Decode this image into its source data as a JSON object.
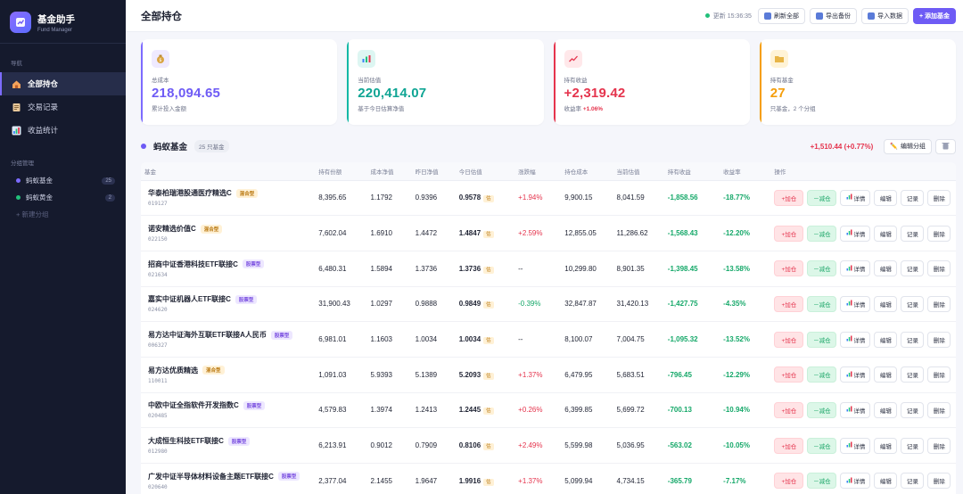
{
  "app": {
    "name": "基金助手",
    "subtitle": "Fund Manager"
  },
  "sidebar": {
    "nav_header": "导航",
    "nav": [
      {
        "label": "全部持仓",
        "icon": "house-icon",
        "active": true
      },
      {
        "label": "交易记录",
        "icon": "ledger-icon",
        "active": false
      },
      {
        "label": "收益统计",
        "icon": "bar-chart-icon",
        "active": false
      }
    ],
    "group_header": "分组管理",
    "groups": [
      {
        "label": "蚂蚁基金",
        "count": "25",
        "color": "#7c6bff"
      },
      {
        "label": "蚂蚁黄金",
        "count": "2",
        "color": "#22c07a"
      }
    ],
    "new_group": "+ 新建分组"
  },
  "topbar": {
    "title": "全部持仓",
    "update": "更新 15:36:35",
    "refresh": "刷新全部",
    "export": "导出备份",
    "import": "导入数据",
    "add": "+ 添加基金"
  },
  "cards": [
    {
      "label": "总成本",
      "value": "218,094.65",
      "sub": "累计投入金额",
      "color": "#7c6bff",
      "icon": "money-bag-icon"
    },
    {
      "label": "当前估值",
      "value": "220,414.07",
      "sub": "基于今日估算净值",
      "color": "#14b8a6",
      "icon": "chart-icon"
    },
    {
      "label": "持有收益",
      "value": "+2,319.42",
      "sub_prefix": "收益率 ",
      "sub_value": "+1.06%",
      "color": "#e5344d",
      "icon": "trend-icon"
    },
    {
      "label": "持有基金",
      "value": "27",
      "sub": "只基金，2 个分组",
      "color": "#f59e0b",
      "icon": "folder-icon"
    }
  ],
  "group": {
    "name": "蚂蚁基金",
    "count": "25 只基金",
    "pl": "+1,510.44 (+0.77%)",
    "edit": "编辑分组"
  },
  "table": {
    "headers": [
      "基金",
      "持有份额",
      "成本净值",
      "昨日净值",
      "今日估值",
      "涨跌幅",
      "持仓成本",
      "当前估值",
      "持有收益",
      "收益率",
      "操作"
    ],
    "est_tag": "估",
    "btn_add": "+加仓",
    "btn_sub": "－减仓",
    "btn_detail": "详情",
    "btn_edit": "编辑",
    "btn_record": "记录",
    "btn_delete": "删除",
    "rows": [
      {
        "name": "华泰柏瑞港股通医疗精选C",
        "tag": "混合型",
        "tagtype": "mix",
        "code": "019127",
        "shares": "8,395.65",
        "cost_nav": "1.1792",
        "y_nav": "0.9396",
        "est": "0.9578",
        "chg": "+1.94%",
        "chg_c": "red",
        "cost": "9,900.15",
        "value": "8,041.59",
        "pl": "-1,858.56",
        "rate": "-18.77%"
      },
      {
        "name": "诺安精选价值C",
        "tag": "混合型",
        "tagtype": "mix",
        "code": "022150",
        "shares": "7,602.04",
        "cost_nav": "1.6910",
        "y_nav": "1.4472",
        "est": "1.4847",
        "chg": "+2.59%",
        "chg_c": "red",
        "cost": "12,855.05",
        "value": "11,286.62",
        "pl": "-1,568.43",
        "rate": "-12.20%"
      },
      {
        "name": "招商中证香港科技ETF联接C",
        "tag": "股票型",
        "tagtype": "stk",
        "code": "021634",
        "shares": "6,480.31",
        "cost_nav": "1.5894",
        "y_nav": "1.3736",
        "est": "1.3736",
        "chg": "--",
        "chg_c": "",
        "cost": "10,299.80",
        "value": "8,901.35",
        "pl": "-1,398.45",
        "rate": "-13.58%"
      },
      {
        "name": "嘉实中证机器人ETF联接C",
        "tag": "股票型",
        "tagtype": "stk",
        "code": "024620",
        "shares": "31,900.43",
        "cost_nav": "1.0297",
        "y_nav": "0.9888",
        "est": "0.9849",
        "chg": "-0.39%",
        "chg_c": "green",
        "cost": "32,847.87",
        "value": "31,420.13",
        "pl": "-1,427.75",
        "rate": "-4.35%"
      },
      {
        "name": "易方达中证海外互联ETF联接A人民币",
        "tag": "股票型",
        "tagtype": "stk",
        "code": "006327",
        "shares": "6,981.01",
        "cost_nav": "1.1603",
        "y_nav": "1.0034",
        "est": "1.0034",
        "chg": "--",
        "chg_c": "",
        "cost": "8,100.07",
        "value": "7,004.75",
        "pl": "-1,095.32",
        "rate": "-13.52%"
      },
      {
        "name": "易方达优质精选",
        "tag": "混合型",
        "tagtype": "mix",
        "code": "110011",
        "shares": "1,091.03",
        "cost_nav": "5.9393",
        "y_nav": "5.1389",
        "est": "5.2093",
        "chg": "+1.37%",
        "chg_c": "red",
        "cost": "6,479.95",
        "value": "5,683.51",
        "pl": "-796.45",
        "rate": "-12.29%"
      },
      {
        "name": "中欧中证全指软件开发指数C",
        "tag": "股票型",
        "tagtype": "stk",
        "code": "020485",
        "shares": "4,579.83",
        "cost_nav": "1.3974",
        "y_nav": "1.2413",
        "est": "1.2445",
        "chg": "+0.26%",
        "chg_c": "red",
        "cost": "6,399.85",
        "value": "5,699.72",
        "pl": "-700.13",
        "rate": "-10.94%"
      },
      {
        "name": "大成恒生科技ETF联接C",
        "tag": "股票型",
        "tagtype": "stk",
        "code": "012980",
        "shares": "6,213.91",
        "cost_nav": "0.9012",
        "y_nav": "0.7909",
        "est": "0.8106",
        "chg": "+2.49%",
        "chg_c": "red",
        "cost": "5,599.98",
        "value": "5,036.95",
        "pl": "-563.02",
        "rate": "-10.05%"
      },
      {
        "name": "广发中证半导体材料设备主题ETF联接C",
        "tag": "股票型",
        "tagtype": "stk",
        "code": "020640",
        "shares": "2,377.04",
        "cost_nav": "2.1455",
        "y_nav": "1.9647",
        "est": "1.9916",
        "chg": "+1.37%",
        "chg_c": "red",
        "cost": "5,099.94",
        "value": "4,734.15",
        "pl": "-365.79",
        "rate": "-7.17%"
      }
    ]
  }
}
